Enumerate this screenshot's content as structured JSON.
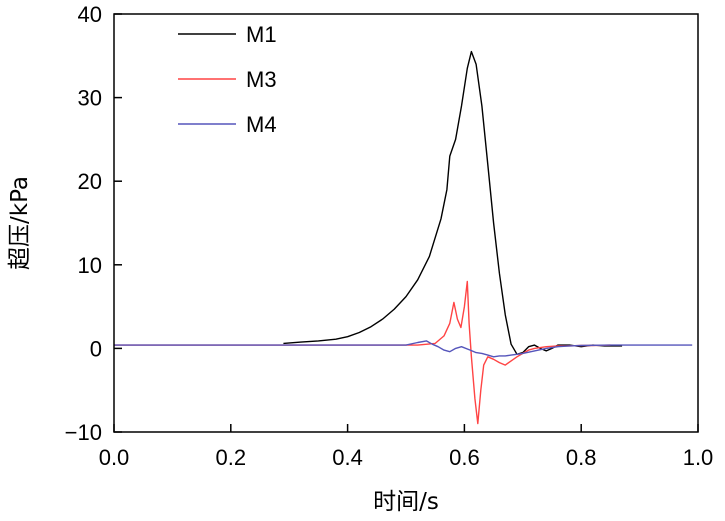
{
  "chart_data": {
    "type": "line",
    "title": "",
    "xlabel": "时间/s",
    "ylabel": "超压/kPa",
    "xlim": [
      0.0,
      1.0
    ],
    "ylim": [
      -10,
      40
    ],
    "xticks": [
      0.0,
      0.2,
      0.4,
      0.6,
      0.8,
      1.0
    ],
    "xtick_labels": [
      "0.0",
      "0.2",
      "0.4",
      "0.6",
      "0.8",
      "1.0"
    ],
    "yticks": [
      -10,
      0,
      10,
      20,
      30,
      40
    ],
    "ytick_labels": [
      "−10",
      "0",
      "10",
      "20",
      "30",
      "40"
    ],
    "grid": false,
    "legend": "top-left",
    "series": [
      {
        "name": "M1",
        "color": "#000000",
        "points": [
          [
            0.29,
            0.6
          ],
          [
            0.32,
            0.75
          ],
          [
            0.35,
            0.9
          ],
          [
            0.38,
            1.1
          ],
          [
            0.4,
            1.4
          ],
          [
            0.42,
            1.9
          ],
          [
            0.44,
            2.6
          ],
          [
            0.46,
            3.5
          ],
          [
            0.48,
            4.7
          ],
          [
            0.5,
            6.2
          ],
          [
            0.52,
            8.2
          ],
          [
            0.54,
            11.0
          ],
          [
            0.56,
            15.5
          ],
          [
            0.57,
            19.0
          ],
          [
            0.575,
            23.0
          ],
          [
            0.585,
            25.0
          ],
          [
            0.595,
            29.0
          ],
          [
            0.605,
            33.5
          ],
          [
            0.612,
            35.5
          ],
          [
            0.62,
            34.0
          ],
          [
            0.63,
            29.0
          ],
          [
            0.64,
            22.0
          ],
          [
            0.65,
            15.0
          ],
          [
            0.66,
            9.0
          ],
          [
            0.67,
            4.0
          ],
          [
            0.68,
            0.5
          ],
          [
            0.69,
            -0.7
          ],
          [
            0.7,
            -0.5
          ],
          [
            0.71,
            0.2
          ],
          [
            0.72,
            0.4
          ],
          [
            0.73,
            0.0
          ],
          [
            0.74,
            -0.3
          ],
          [
            0.75,
            0.0
          ],
          [
            0.76,
            0.4
          ],
          [
            0.78,
            0.4
          ],
          [
            0.8,
            0.2
          ],
          [
            0.82,
            0.4
          ],
          [
            0.84,
            0.3
          ],
          [
            0.86,
            0.3
          ],
          [
            0.87,
            0.3
          ]
        ]
      },
      {
        "name": "M3",
        "color": "#ff4444",
        "points": [
          [
            0.0,
            0.4
          ],
          [
            0.52,
            0.4
          ],
          [
            0.55,
            0.6
          ],
          [
            0.565,
            1.5
          ],
          [
            0.575,
            3.0
          ],
          [
            0.582,
            5.5
          ],
          [
            0.588,
            3.5
          ],
          [
            0.594,
            2.5
          ],
          [
            0.6,
            5.0
          ],
          [
            0.605,
            8.0
          ],
          [
            0.608,
            3.0
          ],
          [
            0.612,
            -1.0
          ],
          [
            0.618,
            -6.0
          ],
          [
            0.623,
            -9.0
          ],
          [
            0.628,
            -5.0
          ],
          [
            0.633,
            -2.0
          ],
          [
            0.64,
            -1.0
          ],
          [
            0.65,
            -1.3
          ],
          [
            0.66,
            -1.7
          ],
          [
            0.67,
            -2.0
          ],
          [
            0.68,
            -1.5
          ],
          [
            0.69,
            -1.0
          ],
          [
            0.7,
            -0.6
          ],
          [
            0.71,
            -0.2
          ],
          [
            0.72,
            0.0
          ],
          [
            0.74,
            0.2
          ],
          [
            0.76,
            0.3
          ],
          [
            0.78,
            0.3
          ],
          [
            0.8,
            0.35
          ],
          [
            0.82,
            0.35
          ],
          [
            0.85,
            0.4
          ]
        ]
      },
      {
        "name": "M4",
        "color": "#5555bb",
        "points": [
          [
            0.0,
            0.4
          ],
          [
            0.5,
            0.4
          ],
          [
            0.52,
            0.7
          ],
          [
            0.535,
            0.9
          ],
          [
            0.545,
            0.5
          ],
          [
            0.555,
            0.2
          ],
          [
            0.565,
            -0.2
          ],
          [
            0.575,
            -0.4
          ],
          [
            0.585,
            0.0
          ],
          [
            0.595,
            0.2
          ],
          [
            0.61,
            -0.2
          ],
          [
            0.62,
            -0.5
          ],
          [
            0.63,
            -0.6
          ],
          [
            0.64,
            -0.8
          ],
          [
            0.65,
            -1.0
          ],
          [
            0.66,
            -0.9
          ],
          [
            0.67,
            -0.9
          ],
          [
            0.68,
            -0.8
          ],
          [
            0.69,
            -0.7
          ],
          [
            0.7,
            -0.6
          ],
          [
            0.72,
            -0.3
          ],
          [
            0.74,
            0.0
          ],
          [
            0.76,
            0.2
          ],
          [
            0.78,
            0.3
          ],
          [
            0.8,
            0.35
          ],
          [
            0.85,
            0.4
          ],
          [
            0.9,
            0.4
          ],
          [
            0.99,
            0.4
          ]
        ]
      }
    ]
  }
}
